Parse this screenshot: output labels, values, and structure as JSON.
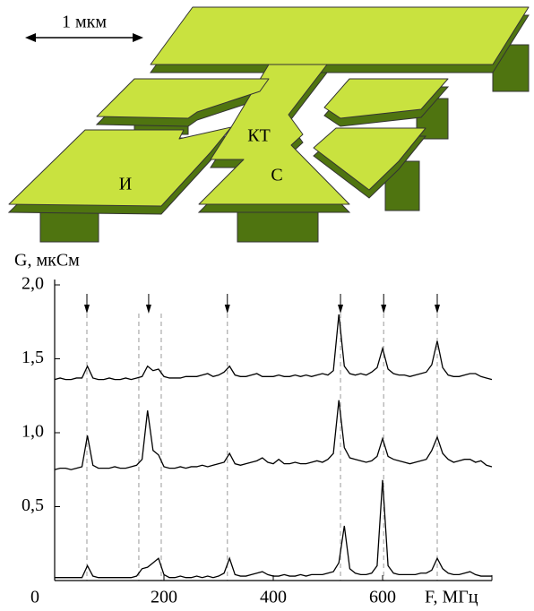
{
  "diagram": {
    "scale_label": "1 мкм",
    "labels": [
      "КТ",
      "И",
      "С"
    ]
  },
  "chart_data": {
    "type": "line",
    "y_label": "G, мкСм",
    "x_label": "F, МГц",
    "x": [
      0,
      10,
      20,
      30,
      40,
      50,
      60,
      70,
      80,
      90,
      100,
      110,
      120,
      130,
      140,
      150,
      160,
      170,
      180,
      190,
      200,
      210,
      220,
      230,
      240,
      250,
      260,
      270,
      280,
      290,
      300,
      310,
      320,
      330,
      340,
      350,
      360,
      370,
      380,
      390,
      400,
      410,
      420,
      430,
      440,
      450,
      460,
      470,
      480,
      490,
      500,
      510,
      520,
      530,
      540,
      550,
      560,
      570,
      580,
      590,
      600,
      610,
      620,
      630,
      640,
      650,
      660,
      670,
      680,
      690,
      700,
      710,
      720,
      730,
      740,
      750,
      760,
      770,
      780,
      790,
      800
    ],
    "series": [
      {
        "color": "#000000",
        "values": [
          1.36,
          1.37,
          1.36,
          1.36,
          1.37,
          1.37,
          1.45,
          1.37,
          1.36,
          1.36,
          1.37,
          1.36,
          1.36,
          1.37,
          1.36,
          1.37,
          1.38,
          1.45,
          1.42,
          1.43,
          1.38,
          1.37,
          1.37,
          1.37,
          1.38,
          1.38,
          1.38,
          1.39,
          1.4,
          1.38,
          1.39,
          1.41,
          1.45,
          1.39,
          1.38,
          1.38,
          1.39,
          1.4,
          1.38,
          1.38,
          1.38,
          1.39,
          1.38,
          1.38,
          1.39,
          1.38,
          1.39,
          1.38,
          1.39,
          1.4,
          1.39,
          1.42,
          1.8,
          1.45,
          1.4,
          1.39,
          1.4,
          1.39,
          1.41,
          1.44,
          1.57,
          1.43,
          1.4,
          1.39,
          1.39,
          1.38,
          1.39,
          1.4,
          1.41,
          1.46,
          1.62,
          1.44,
          1.39,
          1.38,
          1.38,
          1.39,
          1.4,
          1.4,
          1.38,
          1.37,
          1.36
        ]
      },
      {
        "color": "#000000",
        "values": [
          0.75,
          0.76,
          0.76,
          0.75,
          0.76,
          0.77,
          0.98,
          0.78,
          0.76,
          0.76,
          0.76,
          0.77,
          0.76,
          0.76,
          0.77,
          0.78,
          0.82,
          1.15,
          0.88,
          0.85,
          0.77,
          0.76,
          0.76,
          0.77,
          0.76,
          0.77,
          0.77,
          0.78,
          0.77,
          0.78,
          0.79,
          0.8,
          0.86,
          0.79,
          0.78,
          0.79,
          0.8,
          0.81,
          0.83,
          0.8,
          0.79,
          0.82,
          0.79,
          0.79,
          0.8,
          0.79,
          0.79,
          0.8,
          0.81,
          0.8,
          0.82,
          0.86,
          1.22,
          0.9,
          0.83,
          0.82,
          0.81,
          0.8,
          0.81,
          0.84,
          0.96,
          0.84,
          0.82,
          0.81,
          0.8,
          0.79,
          0.8,
          0.81,
          0.82,
          0.88,
          0.97,
          0.86,
          0.82,
          0.8,
          0.81,
          0.82,
          0.82,
          0.8,
          0.81,
          0.78,
          0.77
        ]
      },
      {
        "color": "#000000",
        "values": [
          0.02,
          0.02,
          0.02,
          0.02,
          0.02,
          0.02,
          0.1,
          0.03,
          0.02,
          0.02,
          0.02,
          0.02,
          0.02,
          0.02,
          0.02,
          0.03,
          0.08,
          0.09,
          0.12,
          0.15,
          0.04,
          0.02,
          0.02,
          0.03,
          0.02,
          0.02,
          0.03,
          0.02,
          0.03,
          0.02,
          0.03,
          0.05,
          0.15,
          0.04,
          0.03,
          0.03,
          0.04,
          0.05,
          0.06,
          0.04,
          0.03,
          0.03,
          0.04,
          0.03,
          0.03,
          0.04,
          0.03,
          0.04,
          0.04,
          0.04,
          0.05,
          0.06,
          0.12,
          0.37,
          0.08,
          0.05,
          0.04,
          0.04,
          0.05,
          0.1,
          0.68,
          0.1,
          0.05,
          0.04,
          0.04,
          0.04,
          0.04,
          0.05,
          0.05,
          0.07,
          0.15,
          0.08,
          0.05,
          0.04,
          0.04,
          0.05,
          0.06,
          0.04,
          0.03,
          0.03,
          0.03
        ]
      }
    ],
    "arrow_x": [
      59,
      172,
      316,
      523,
      602,
      700
    ],
    "dashed_x": [
      59,
      154,
      195,
      316,
      523,
      602,
      700
    ],
    "xlim": [
      0,
      800
    ],
    "xticks": [
      200,
      400,
      600
    ],
    "ylim": [
      0,
      2.0
    ],
    "yticks": [
      {
        "value": 0,
        "label": "0"
      },
      {
        "value": 0.5,
        "label": "0,5"
      },
      {
        "value": 1.0,
        "label": "1,0"
      },
      {
        "value": 1.5,
        "label": "1,5"
      },
      {
        "value": 2.0,
        "label": "2,0"
      }
    ]
  }
}
